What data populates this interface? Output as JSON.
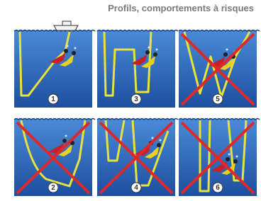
{
  "title": "Profils, comportements à risques",
  "panels": [
    {
      "label": "1",
      "crossed": false
    },
    {
      "label": "3",
      "crossed": false
    },
    {
      "label": "5",
      "crossed": true
    },
    {
      "label": "2",
      "crossed": true
    },
    {
      "label": "4",
      "crossed": true
    },
    {
      "label": "6",
      "crossed": true
    }
  ]
}
